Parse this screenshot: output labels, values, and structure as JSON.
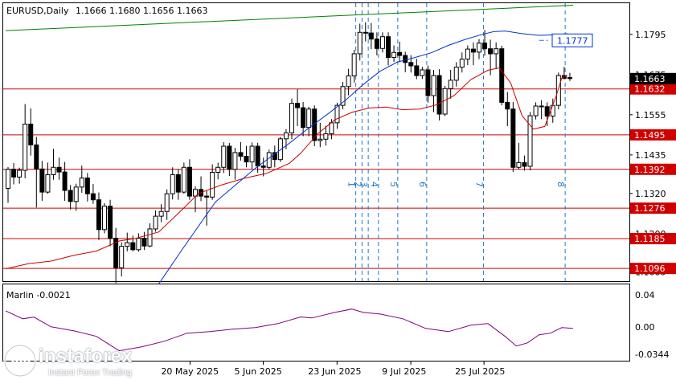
{
  "header": {
    "symbol": "EURUSD,Daily",
    "ohlc": "1.1666 1.1680 1.1656 1.1663"
  },
  "indicator": {
    "label": "Marlin -0.0021",
    "ticks": [
      "0.04",
      "0.00",
      "-0.0344"
    ]
  },
  "watermark": {
    "brand": "instaforex",
    "tagline": "Instant Forex Trading"
  },
  "colors": {
    "candle": "#000000",
    "level_line": "#d00000",
    "ma_blue": "#0033cc",
    "ma_red": "#cc0000",
    "trend_green": "#008000",
    "vline": "#1f78c8",
    "osc": "#800080",
    "price_tag_bg": "#000000",
    "level_tag_bg": "#d00000"
  },
  "chart_data": {
    "type": "candlestick",
    "price_axis": {
      "ticks": [
        "1.1795",
        "1.1675",
        "1.1555",
        "1.1435",
        "1.1320",
        "1.1200",
        "1.1085"
      ],
      "range": [
        1.1058,
        1.1888
      ]
    },
    "x_axis": {
      "labels": [
        "20 May 2025",
        "5 Jun 2025",
        "23 Jun 2025",
        "9 Jul 2025",
        "25 Jul 2025"
      ]
    },
    "current_price": "1.1663",
    "levels": [
      {
        "value": 1.1632,
        "label": "1.1632"
      },
      {
        "value": 1.1495,
        "label": "1.1495"
      },
      {
        "value": 1.1392,
        "label": "1.1392"
      },
      {
        "value": 1.1276,
        "label": "1.1276"
      },
      {
        "value": 1.1185,
        "label": "1.1185"
      },
      {
        "value": 1.1096,
        "label": "1.1096"
      }
    ],
    "target": {
      "value": 1.1777,
      "label": "1.1777"
    },
    "vlines": [
      {
        "label": "1",
        "bar": 61.7
      },
      {
        "label": "2",
        "bar": 62.8
      },
      {
        "label": "3",
        "bar": 63.9
      },
      {
        "label": "4",
        "bar": 65.7
      },
      {
        "label": "5",
        "bar": 69.1
      },
      {
        "label": "6",
        "bar": 74.2
      },
      {
        "label": "7",
        "bar": 84.2
      },
      {
        "label": "8",
        "bar": 98.6
      }
    ],
    "ohlc": [
      [
        1.1335,
        1.1399,
        1.1292,
        1.1392
      ],
      [
        1.1392,
        1.1411,
        1.1347,
        1.1369
      ],
      [
        1.1369,
        1.1397,
        1.1349,
        1.1389
      ],
      [
        1.1389,
        1.1587,
        1.1365,
        1.1527
      ],
      [
        1.1527,
        1.1574,
        1.1433,
        1.1465
      ],
      [
        1.1465,
        1.1489,
        1.1278,
        1.1393
      ],
      [
        1.1393,
        1.1417,
        1.1298,
        1.1324
      ],
      [
        1.1324,
        1.1412,
        1.1319,
        1.1376
      ],
      [
        1.1376,
        1.1453,
        1.1361,
        1.1398
      ],
      [
        1.1398,
        1.1427,
        1.1361,
        1.1384
      ],
      [
        1.1384,
        1.1414,
        1.1298,
        1.1329
      ],
      [
        1.1329,
        1.1345,
        1.1272,
        1.1296
      ],
      [
        1.1296,
        1.1349,
        1.1268,
        1.1339
      ],
      [
        1.1339,
        1.1403,
        1.1322,
        1.1366
      ],
      [
        1.1366,
        1.1381,
        1.1296,
        1.1319
      ],
      [
        1.1319,
        1.1348,
        1.1289,
        1.1301
      ],
      [
        1.1301,
        1.1323,
        1.1181,
        1.1212
      ],
      [
        1.1212,
        1.1291,
        1.1201,
        1.1282
      ],
      [
        1.1282,
        1.1301,
        1.1162,
        1.1186
      ],
      [
        1.1186,
        1.1217,
        1.1052,
        1.1098
      ],
      [
        1.1098,
        1.1174,
        1.1072,
        1.1162
      ],
      [
        1.1162,
        1.1203,
        1.1147,
        1.1173
      ],
      [
        1.1173,
        1.1194,
        1.1147,
        1.1152
      ],
      [
        1.1152,
        1.1201,
        1.1146,
        1.1186
      ],
      [
        1.1186,
        1.1205,
        1.1151,
        1.1163
      ],
      [
        1.1163,
        1.1231,
        1.1159,
        1.1214
      ],
      [
        1.1214,
        1.1269,
        1.1206,
        1.1252
      ],
      [
        1.1252,
        1.1288,
        1.1234,
        1.1266
      ],
      [
        1.1266,
        1.1332,
        1.1241,
        1.1319
      ],
      [
        1.1319,
        1.1398,
        1.1302,
        1.1376
      ],
      [
        1.1376,
        1.1392,
        1.1301,
        1.1324
      ],
      [
        1.1324,
        1.1412,
        1.1319,
        1.1398
      ],
      [
        1.1398,
        1.1422,
        1.1301,
        1.1312
      ],
      [
        1.1312,
        1.1341,
        1.1264,
        1.1332
      ],
      [
        1.1332,
        1.1371,
        1.1297,
        1.1312
      ],
      [
        1.1312,
        1.1329,
        1.1224,
        1.1309
      ],
      [
        1.1309,
        1.1407,
        1.1301,
        1.1383
      ],
      [
        1.1383,
        1.1412,
        1.1362,
        1.1398
      ],
      [
        1.1398,
        1.1473,
        1.1381,
        1.1461
      ],
      [
        1.1461,
        1.1471,
        1.1372,
        1.1392
      ],
      [
        1.1392,
        1.1456,
        1.1361,
        1.1442
      ],
      [
        1.1442,
        1.1473,
        1.1418,
        1.1431
      ],
      [
        1.1431,
        1.1462,
        1.1398,
        1.1414
      ],
      [
        1.1414,
        1.1472,
        1.1393,
        1.1461
      ],
      [
        1.1461,
        1.1471,
        1.1382,
        1.1402
      ],
      [
        1.1402,
        1.1427,
        1.1371,
        1.1398
      ],
      [
        1.1398,
        1.1451,
        1.1391,
        1.1442
      ],
      [
        1.1442,
        1.1463,
        1.1398,
        1.1421
      ],
      [
        1.1421,
        1.1489,
        1.1414,
        1.1483
      ],
      [
        1.1483,
        1.1512,
        1.1452,
        1.1501
      ],
      [
        1.1501,
        1.1603,
        1.1482,
        1.1589
      ],
      [
        1.1589,
        1.1631,
        1.1521,
        1.1576
      ],
      [
        1.1576,
        1.1593,
        1.1491,
        1.1517
      ],
      [
        1.1517,
        1.1579,
        1.1491,
        1.1572
      ],
      [
        1.1572,
        1.1583,
        1.1461,
        1.1478
      ],
      [
        1.1478,
        1.1531,
        1.1458,
        1.1482
      ],
      [
        1.1482,
        1.1522,
        1.1463,
        1.1498
      ],
      [
        1.1498,
        1.1542,
        1.1482,
        1.1531
      ],
      [
        1.1531,
        1.1591,
        1.1513,
        1.1583
      ],
      [
        1.1583,
        1.1653,
        1.1571,
        1.1639
      ],
      [
        1.1639,
        1.1692,
        1.1613,
        1.1671
      ],
      [
        1.1671,
        1.1749,
        1.1651,
        1.1737
      ],
      [
        1.1737,
        1.1827,
        1.1717,
        1.1801
      ],
      [
        1.1801,
        1.1831,
        1.1774,
        1.1799
      ],
      [
        1.1799,
        1.1829,
        1.1751,
        1.1781
      ],
      [
        1.1781,
        1.1801,
        1.1732,
        1.1753
      ],
      [
        1.1753,
        1.1801,
        1.1741,
        1.1788
      ],
      [
        1.1788,
        1.1801,
        1.1702,
        1.1726
      ],
      [
        1.1726,
        1.1762,
        1.1713,
        1.1741
      ],
      [
        1.1741,
        1.1773,
        1.1712,
        1.1732
      ],
      [
        1.1732,
        1.1743,
        1.1682,
        1.1711
      ],
      [
        1.1711,
        1.1733,
        1.1681,
        1.1701
      ],
      [
        1.1701,
        1.1722,
        1.1661,
        1.1672
      ],
      [
        1.1672,
        1.1698,
        1.1662,
        1.1689
      ],
      [
        1.1689,
        1.1702,
        1.1591,
        1.1612
      ],
      [
        1.1612,
        1.1689,
        1.1563,
        1.1672
      ],
      [
        1.1672,
        1.1691,
        1.1538,
        1.1557
      ],
      [
        1.1557,
        1.1641,
        1.1551,
        1.1633
      ],
      [
        1.1633,
        1.1689,
        1.1603,
        1.1658
      ],
      [
        1.1658,
        1.1712,
        1.1639,
        1.1697
      ],
      [
        1.1697,
        1.1741,
        1.1681,
        1.1721
      ],
      [
        1.1721,
        1.1762,
        1.1703,
        1.1751
      ],
      [
        1.1751,
        1.1771,
        1.1703,
        1.1742
      ],
      [
        1.1742,
        1.1781,
        1.1721,
        1.1769
      ],
      [
        1.1769,
        1.1808,
        1.1731,
        1.1752
      ],
      [
        1.1752,
        1.1779,
        1.1673,
        1.1737
      ],
      [
        1.1737,
        1.1771,
        1.1691,
        1.1752
      ],
      [
        1.1752,
        1.1761,
        1.1583,
        1.1592
      ],
      [
        1.1592,
        1.1623,
        1.1521,
        1.1572
      ],
      [
        1.1572,
        1.1593,
        1.1384,
        1.1398
      ],
      [
        1.1398,
        1.1471,
        1.1392,
        1.1412
      ],
      [
        1.1412,
        1.1433,
        1.1388,
        1.1401
      ],
      [
        1.1401,
        1.1563,
        1.1389,
        1.1552
      ],
      [
        1.1552,
        1.1592,
        1.1541,
        1.1581
      ],
      [
        1.1581,
        1.1598,
        1.1542,
        1.1579
      ],
      [
        1.1579,
        1.1592,
        1.1521,
        1.1551
      ],
      [
        1.1551,
        1.1603,
        1.1531,
        1.1583
      ],
      [
        1.1583,
        1.1681,
        1.1571,
        1.1672
      ],
      [
        1.1672,
        1.1698,
        1.1661,
        1.1664
      ],
      [
        1.1666,
        1.168,
        1.1656,
        1.1663
      ]
    ],
    "ma_blue": [
      [
        27,
        1.105
      ],
      [
        31,
        1.115
      ],
      [
        37,
        1.1295
      ],
      [
        44,
        1.1395
      ],
      [
        50,
        1.147
      ],
      [
        53,
        1.151
      ],
      [
        57,
        1.156
      ],
      [
        60,
        1.16
      ],
      [
        63,
        1.1645
      ],
      [
        66,
        1.1685
      ],
      [
        69,
        1.1712
      ],
      [
        72,
        1.1725
      ],
      [
        75,
        1.174
      ],
      [
        78,
        1.1762
      ],
      [
        81,
        1.178
      ],
      [
        84,
        1.1795
      ],
      [
        86,
        1.1803
      ],
      [
        88,
        1.1805
      ],
      [
        91,
        1.1797
      ],
      [
        94,
        1.1792
      ],
      [
        97,
        1.1794
      ],
      [
        99,
        1.1797
      ]
    ],
    "ma_red": [
      [
        0,
        1.1095
      ],
      [
        4,
        1.111
      ],
      [
        8,
        1.1118
      ],
      [
        12,
        1.1135
      ],
      [
        16,
        1.1148
      ],
      [
        20,
        1.1178
      ],
      [
        23,
        1.1186
      ],
      [
        27,
        1.1205
      ],
      [
        31,
        1.127
      ],
      [
        34,
        1.132
      ],
      [
        38,
        1.1345
      ],
      [
        42,
        1.1365
      ],
      [
        46,
        1.138
      ],
      [
        50,
        1.141
      ],
      [
        52,
        1.144
      ],
      [
        55,
        1.1498
      ],
      [
        58,
        1.154
      ],
      [
        61,
        1.1562
      ],
      [
        64,
        1.1575
      ],
      [
        67,
        1.1578
      ],
      [
        70,
        1.157
      ],
      [
        73,
        1.1572
      ],
      [
        76,
        1.1585
      ],
      [
        79,
        1.1612
      ],
      [
        82,
        1.166
      ],
      [
        85,
        1.1688
      ],
      [
        87,
        1.1695
      ],
      [
        89,
        1.165
      ],
      [
        91,
        1.1552
      ],
      [
        93,
        1.1512
      ],
      [
        95,
        1.152
      ],
      [
        97,
        1.161
      ],
      [
        98,
        1.1665
      ],
      [
        99,
        1.1672
      ]
    ],
    "trend_green": [
      [
        0,
        1.1806
      ],
      [
        100,
        1.1882
      ]
    ],
    "oscillator": {
      "range": [
        -0.0344,
        0.04
      ],
      "points": [
        [
          0,
          0.02
        ],
        [
          3,
          0.01
        ],
        [
          5,
          0.012
        ],
        [
          8,
          0.0
        ],
        [
          12,
          -0.005
        ],
        [
          16,
          -0.012
        ],
        [
          20,
          -0.03
        ],
        [
          24,
          -0.025
        ],
        [
          28,
          -0.018
        ],
        [
          32,
          -0.008
        ],
        [
          36,
          -0.006
        ],
        [
          40,
          -0.003
        ],
        [
          44,
          -0.001
        ],
        [
          48,
          0.004
        ],
        [
          52,
          0.0124
        ],
        [
          54,
          0.011
        ],
        [
          58,
          0.018
        ],
        [
          61,
          0.0222
        ],
        [
          63,
          0.018
        ],
        [
          66,
          0.016
        ],
        [
          70,
          0.01
        ],
        [
          74,
          -0.002
        ],
        [
          78,
          -0.006
        ],
        [
          82,
          0.002
        ],
        [
          85,
          0.004
        ],
        [
          88,
          -0.012
        ],
        [
          90,
          -0.024
        ],
        [
          92,
          -0.02
        ],
        [
          94,
          -0.01
        ],
        [
          96,
          -0.008
        ],
        [
          98,
          -0.001
        ],
        [
          100,
          -0.002
        ]
      ]
    }
  }
}
